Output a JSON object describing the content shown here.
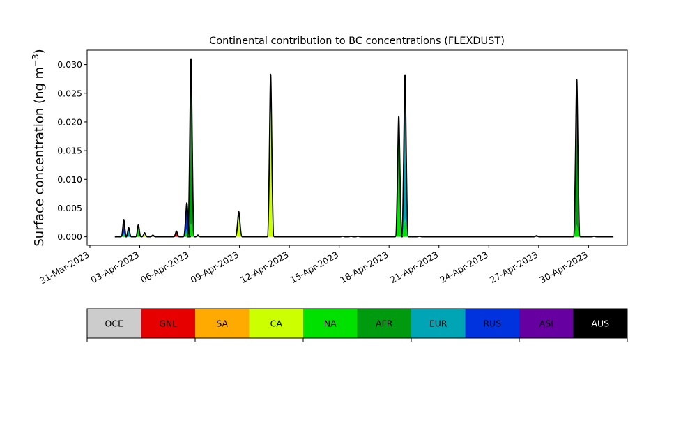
{
  "chart_data": {
    "type": "area",
    "stacked": true,
    "title": "Continental contribution to BC concentrations (FLEXDUST)",
    "ylabel": "Surface concentration (ng m",
    "ylabel_superscript": "−3",
    "ylabel_close": ")",
    "xlabel": "",
    "ylim": [
      -0.0015,
      0.0325
    ],
    "xlim": [
      "2023-03-30T20:00",
      "2023-05-02T08:00"
    ],
    "x_ticks": [
      "31-Mar-2023",
      "03-Apr-2023",
      "06-Apr-2023",
      "09-Apr-2023",
      "12-Apr-2023",
      "15-Apr-2023",
      "18-Apr-2023",
      "21-Apr-2023",
      "24-Apr-2023",
      "27-Apr-2023",
      "30-Apr-2023"
    ],
    "y_ticks": [
      "0.000",
      "0.005",
      "0.010",
      "0.015",
      "0.020",
      "0.025",
      "0.030"
    ],
    "grid": false,
    "total_line_color": "#000000",
    "series_order": [
      "OCE",
      "GNL",
      "SA",
      "CA",
      "NA",
      "AFR",
      "EUR",
      "RUS",
      "ASI",
      "AUS"
    ],
    "peaks": [
      {
        "t": "2023-04-02T01:00",
        "total": 0.003,
        "dominant": "RUS",
        "others": [
          "EUR",
          "NA"
        ]
      },
      {
        "t": "2023-04-02T08:00",
        "total": 0.0016,
        "dominant": "EUR",
        "others": [
          "RUS"
        ]
      },
      {
        "t": "2023-04-02T22:00",
        "total": 0.0021,
        "dominant": "NA",
        "others": [
          "EUR"
        ]
      },
      {
        "t": "2023-04-03T07:00",
        "total": 0.0007,
        "dominant": "CA",
        "others": []
      },
      {
        "t": "2023-04-03T19:00",
        "total": 0.0003,
        "dominant": "SA",
        "others": []
      },
      {
        "t": "2023-04-05T05:00",
        "total": 0.001,
        "dominant": "GNL",
        "others": [
          "RUS"
        ]
      },
      {
        "t": "2023-04-05T20:00",
        "total": 0.0059,
        "dominant": "RUS",
        "others": [
          "EUR",
          "NA"
        ]
      },
      {
        "t": "2023-04-06T02:00",
        "total": 0.031,
        "dominant": "AFR",
        "others": [
          "NA",
          "EUR",
          "RUS"
        ]
      },
      {
        "t": "2023-04-06T12:00",
        "total": 0.0003,
        "dominant": "NA",
        "others": []
      },
      {
        "t": "2023-04-08T23:00",
        "total": 0.0044,
        "dominant": "CA",
        "others": [
          "NA"
        ]
      },
      {
        "t": "2023-04-10T21:00",
        "total": 0.0283,
        "dominant": "CA",
        "others": [
          "RUS",
          "EUR"
        ]
      },
      {
        "t": "2023-04-15T05:00",
        "total": 0.0001,
        "dominant": "CA",
        "others": []
      },
      {
        "t": "2023-04-15T17:00",
        "total": 0.0001,
        "dominant": "NA",
        "others": []
      },
      {
        "t": "2023-04-16T03:00",
        "total": 0.0001,
        "dominant": "CA",
        "others": []
      },
      {
        "t": "2023-04-18T14:00",
        "total": 0.021,
        "dominant": "NA",
        "others": [
          "EUR",
          "RUS"
        ]
      },
      {
        "t": "2023-04-18T23:00",
        "total": 0.0282,
        "dominant": "EUR",
        "others": [
          "RUS",
          "NA"
        ]
      },
      {
        "t": "2023-04-19T20:00",
        "total": 0.0001,
        "dominant": "RUS",
        "others": []
      },
      {
        "t": "2023-04-26T21:00",
        "total": 0.0002,
        "dominant": "RUS",
        "others": []
      },
      {
        "t": "2023-04-29T07:00",
        "total": 0.0274,
        "dominant": "AFR",
        "others": [
          "ASI",
          "RUS",
          "NA"
        ]
      },
      {
        "t": "2023-04-30T08:00",
        "total": 0.0001,
        "dominant": "RUS",
        "others": []
      }
    ],
    "legend": {
      "placement": "bottom",
      "entries": [
        {
          "label": "OCE",
          "color": "#cccccc",
          "text_color": "#000000"
        },
        {
          "label": "GNL",
          "color": "#e60000",
          "text_color": "#000000"
        },
        {
          "label": "SA",
          "color": "#ffaa00",
          "text_color": "#000000"
        },
        {
          "label": "CA",
          "color": "#ccff00",
          "text_color": "#000000"
        },
        {
          "label": "NA",
          "color": "#00e100",
          "text_color": "#000000"
        },
        {
          "label": "AFR",
          "color": "#009a0f",
          "text_color": "#000000"
        },
        {
          "label": "EUR",
          "color": "#00a5b5",
          "text_color": "#000000"
        },
        {
          "label": "RUS",
          "color": "#0033dd",
          "text_color": "#000000"
        },
        {
          "label": "ASI",
          "color": "#6600a0",
          "text_color": "#000000"
        },
        {
          "label": "AUS",
          "color": "#000000",
          "text_color": "#ffffff"
        }
      ]
    }
  }
}
